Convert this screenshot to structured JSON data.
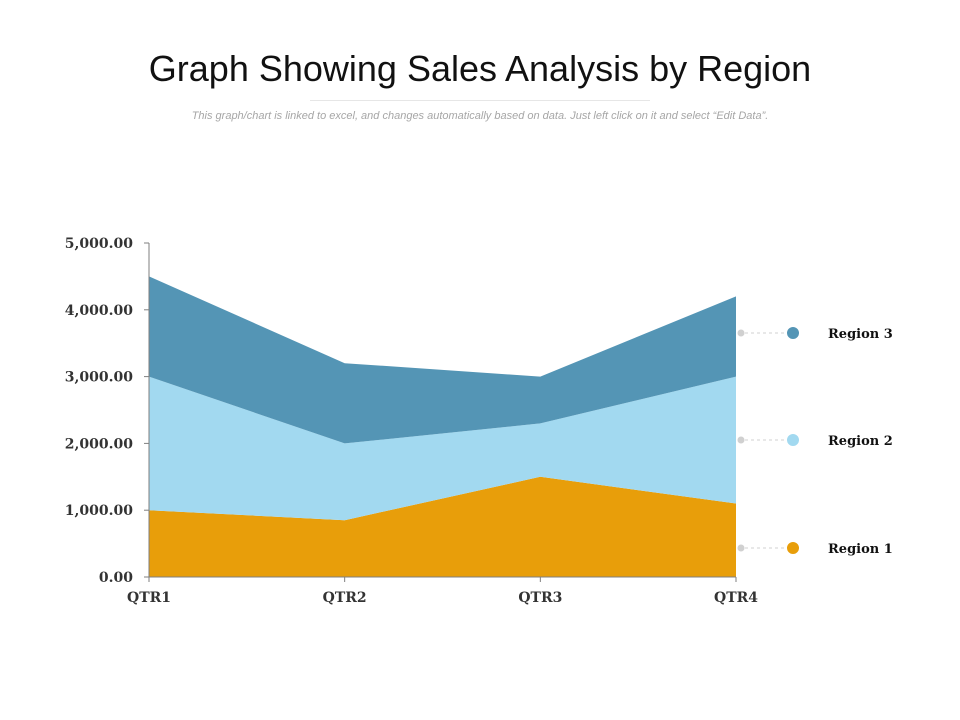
{
  "header": {
    "title": "Graph Showing Sales Analysis by Region",
    "subtitle": "This graph/chart is linked to excel, and changes automatically based on data. Just left click on it and select “Edit Data”."
  },
  "chart_data": {
    "type": "area",
    "stacked": true,
    "categories": [
      "QTR1",
      "QTR2",
      "QTR3",
      "QTR4"
    ],
    "series": [
      {
        "name": "Region 1",
        "values": [
          1000,
          850,
          1500,
          1100
        ],
        "color": "#e89e0a"
      },
      {
        "name": "Region 2",
        "values": [
          2000,
          1150,
          800,
          1900
        ],
        "color": "#a2d9f0"
      },
      {
        "name": "Region 3",
        "values": [
          1500,
          1200,
          700,
          1200
        ],
        "color": "#5495b5"
      }
    ],
    "ylim": [
      0,
      5000
    ],
    "yticks": [
      "0.00",
      "1,000.00",
      "2,000.00",
      "3,000.00",
      "4,000.00",
      "5,000.00"
    ],
    "legend_position": "right",
    "grid": false,
    "axis_color": "#7f7f7f",
    "leader_color": "#d0d0d0"
  }
}
